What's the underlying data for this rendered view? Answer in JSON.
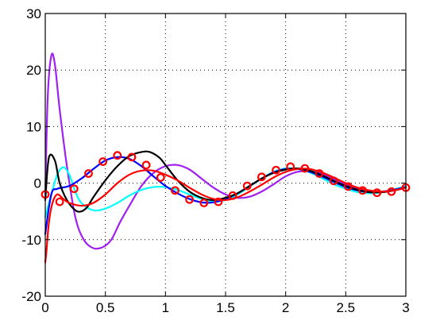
{
  "chart_data": {
    "type": "line",
    "title": "",
    "xlabel": "",
    "ylabel": "",
    "xlim": [
      0,
      3
    ],
    "ylim": [
      -20,
      30
    ],
    "grid": true,
    "x_ticks": [
      0,
      0.5,
      1,
      1.5,
      2,
      2.5,
      3
    ],
    "x_tick_labels": [
      "0",
      "0.5",
      "1",
      "1.5",
      "2",
      "2.5",
      "3"
    ],
    "y_ticks": [
      -20,
      -10,
      0,
      10,
      20,
      30
    ],
    "y_tick_labels": [
      "-20",
      "-10",
      "0",
      "10",
      "20",
      "30"
    ],
    "series": [
      {
        "color": "#a020f0",
        "type": "line",
        "x": [
          0,
          0.02,
          0.05,
          0.08,
          0.12,
          0.18,
          0.25,
          0.32,
          0.4,
          0.48,
          0.55,
          0.62,
          0.7,
          0.8,
          0.9,
          1.0,
          1.1,
          1.2,
          1.3,
          1.4,
          1.5,
          1.6,
          1.7,
          1.8,
          1.9,
          2.0,
          2.1,
          2.2,
          2.3,
          2.4,
          2.5,
          2.6,
          2.7,
          2.8,
          2.9,
          3.0
        ],
        "y": [
          -2,
          15,
          22.5,
          21,
          13,
          3,
          -6,
          -10,
          -11.5,
          -11.3,
          -10,
          -7,
          -4,
          -0.5,
          1.8,
          3,
          3.2,
          2.4,
          0.8,
          -0.8,
          -2,
          -2.6,
          -2.4,
          -1.5,
          -0.2,
          1.2,
          2,
          2.1,
          1.6,
          0.7,
          -0.3,
          -1.1,
          -1.6,
          -1.6,
          -1.3,
          -0.8
        ]
      },
      {
        "color": "#00ffff",
        "type": "line",
        "x": [
          0,
          0.05,
          0.1,
          0.15,
          0.2,
          0.25,
          0.3,
          0.4,
          0.5,
          0.6,
          0.7,
          0.8,
          0.9,
          1.0,
          1.1,
          1.2,
          1.3,
          1.4,
          1.5,
          1.6,
          1.7,
          1.8,
          1.9,
          2.0,
          2.1,
          2.2,
          2.3,
          2.4,
          2.5,
          2.6,
          2.7,
          2.8,
          2.9,
          3.0
        ],
        "y": [
          -6,
          -2,
          1.5,
          2.8,
          1.5,
          -1.5,
          -3.5,
          -4.8,
          -4.5,
          -3.5,
          -2.2,
          -1.2,
          -0.7,
          -0.7,
          -1.2,
          -2,
          -2.8,
          -3.2,
          -3,
          -2,
          -0.6,
          0.8,
          2,
          2.6,
          2.5,
          1.9,
          0.9,
          -0.2,
          -1,
          -1.6,
          -1.8,
          -1.6,
          -1.1,
          -0.6
        ]
      },
      {
        "color": "#0000ff",
        "type": "line",
        "x": [
          0,
          0.05,
          0.1,
          0.2,
          0.3,
          0.4,
          0.5,
          0.6,
          0.7,
          0.8,
          0.9,
          1.0,
          1.1,
          1.2,
          1.3,
          1.4,
          1.5,
          1.6,
          1.7,
          1.8,
          1.9,
          2.0,
          2.1,
          2.2,
          2.3,
          2.4,
          2.5,
          2.6,
          2.7,
          2.8,
          2.9,
          3.0
        ],
        "y": [
          -9,
          -2,
          -1,
          -0.5,
          0.8,
          2.5,
          4,
          4.6,
          4.3,
          3,
          1.2,
          -0.5,
          -1.8,
          -2.8,
          -3.4,
          -3.4,
          -2.8,
          -1.8,
          -0.5,
          0.8,
          1.9,
          2.5,
          2.5,
          2,
          1.2,
          0.2,
          -0.7,
          -1.3,
          -1.6,
          -1.5,
          -1.2,
          -0.7
        ]
      },
      {
        "color": "#000000",
        "type": "line",
        "x": [
          0,
          0.03,
          0.08,
          0.12,
          0.18,
          0.25,
          0.3,
          0.35,
          0.4,
          0.5,
          0.6,
          0.7,
          0.8,
          0.87,
          0.95,
          1.0,
          1.1,
          1.2,
          1.3,
          1.4,
          1.5,
          1.6,
          1.7,
          1.8,
          1.9,
          2.0,
          2.1,
          2.2,
          2.3,
          2.4,
          2.5,
          2.6,
          2.7,
          2.8,
          2.9,
          3.0
        ],
        "y": [
          -3,
          4.5,
          4,
          0,
          -3,
          -4.8,
          -5,
          -4.2,
          -2.5,
          0.5,
          3,
          4.8,
          5.5,
          5.5,
          4.5,
          3.2,
          0.5,
          -1.5,
          -2.6,
          -3,
          -2.6,
          -1.8,
          -0.5,
          0.8,
          1.8,
          2.4,
          2.6,
          2.2,
          1.4,
          0.4,
          -0.5,
          -1.2,
          -1.6,
          -1.6,
          -1.3,
          -0.8
        ]
      },
      {
        "color": "#ff0000",
        "type": "line",
        "x": [
          0,
          0.01,
          0.03,
          0.06,
          0.1,
          0.15,
          0.2,
          0.3,
          0.4,
          0.5,
          0.6,
          0.7,
          0.8,
          0.9,
          1.0,
          1.1,
          1.2,
          1.3,
          1.4,
          1.5,
          1.6,
          1.7,
          1.8,
          1.9,
          2.0,
          2.1,
          2.2,
          2.3,
          2.4,
          2.5,
          2.6,
          2.7,
          2.8,
          2.9,
          3.0
        ],
        "y": [
          -14,
          -12,
          -7,
          -3.5,
          -2,
          -2.8,
          -3.5,
          -4,
          -3.5,
          -2,
          0,
          1.5,
          2.2,
          2.2,
          1.5,
          0.5,
          -0.8,
          -2,
          -2.8,
          -3,
          -2.5,
          -1.5,
          -0.3,
          1,
          2,
          2.5,
          2.5,
          1.9,
          1,
          0,
          -0.8,
          -1.3,
          -1.5,
          -1.3,
          -0.8
        ]
      },
      {
        "color": "#ff0000",
        "type": "scatter",
        "marker": "circle",
        "x": [
          0,
          0.12,
          0.24,
          0.36,
          0.48,
          0.6,
          0.72,
          0.84,
          0.96,
          1.08,
          1.2,
          1.32,
          1.44,
          1.56,
          1.68,
          1.8,
          1.92,
          2.04,
          2.16,
          2.28,
          2.4,
          2.52,
          2.64,
          2.76,
          2.88,
          3.0
        ],
        "y": [
          -2,
          -3.3,
          -1,
          1.7,
          3.8,
          4.9,
          4.6,
          3.2,
          1,
          -1.3,
          -2.9,
          -3.5,
          -3.3,
          -2.2,
          -0.5,
          1.1,
          2.3,
          2.9,
          2.6,
          1.7,
          0.4,
          -0.6,
          -1.3,
          -1.7,
          -1.5,
          -0.8
        ]
      }
    ]
  }
}
